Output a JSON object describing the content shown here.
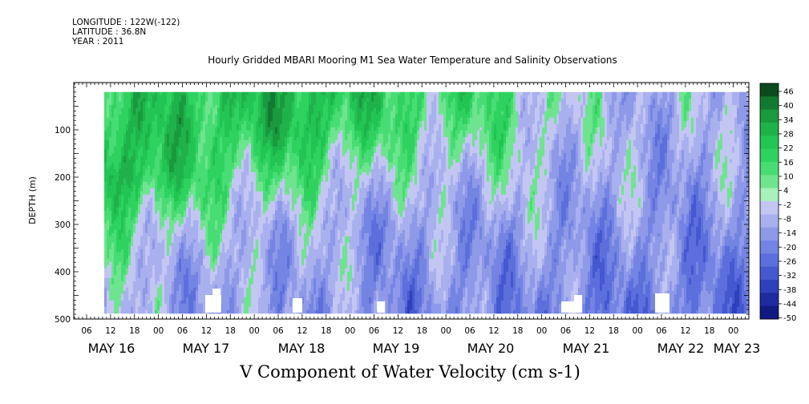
{
  "header": {
    "longitude": "LONGITUDE : 122W(-122)",
    "latitude": "LATITUDE : 36.8N",
    "year": "YEAR : 2011"
  },
  "chart_data": {
    "type": "heatmap",
    "title": "Hourly Gridded MBARI Mooring M1 Sea Water Temperature and Salinity Observations",
    "xlabel": "V Component of Water Velocity (cm s-1)",
    "ylabel": "DEPTH (m)",
    "x_start": "MAY 15 18:00",
    "x_end": "MAY 23 06:00",
    "x_tick_hours": [
      "06",
      "12",
      "18",
      "00"
    ],
    "x_day_labels": [
      "MAY 16",
      "MAY 17",
      "MAY 18",
      "MAY 19",
      "MAY 20",
      "MAY 21",
      "MAY 22",
      "MAY 23"
    ],
    "ylim": [
      500,
      0
    ],
    "y_ticks": [
      100,
      200,
      300,
      400,
      500
    ],
    "data_depth_range": [
      20,
      485
    ],
    "colorbar": {
      "levels": [
        46,
        40,
        34,
        28,
        22,
        16,
        10,
        4,
        -2,
        -8,
        -14,
        -20,
        -26,
        -32,
        -38,
        -44,
        -50
      ],
      "colors_pos_high": [
        "#0b4a1c",
        "#127a30",
        "#1a9a3e",
        "#20b24a",
        "#22c553",
        "#2fd25f",
        "#48dd74",
        "#6ee48f",
        "#a8f0bc"
      ],
      "colors_neg_low": [
        "#c3c6f2",
        "#a9b0ee",
        "#8e99e8",
        "#7484e2",
        "#5c6fdc",
        "#4458cf",
        "#2f40bd",
        "#1f2ba0",
        "#101a80"
      ]
    },
    "velocity_grid_cm_s": {
      "depths_m": [
        25,
        100,
        200,
        300,
        400,
        475
      ],
      "days": [
        "MAY 16",
        "MAY 17",
        "MAY 18",
        "MAY 19",
        "MAY 20",
        "MAY 21",
        "MAY 22"
      ],
      "values": [
        [
          18,
          20,
          26,
          14,
          10,
          -4,
          -6
        ],
        [
          24,
          18,
          22,
          8,
          6,
          -6,
          -8
        ],
        [
          28,
          10,
          6,
          -4,
          -2,
          -8,
          -10
        ],
        [
          8,
          -2,
          -6,
          -12,
          -10,
          -12,
          -14
        ],
        [
          -4,
          -10,
          -8,
          -14,
          -14,
          -16,
          -18
        ],
        [
          -6,
          -12,
          -10,
          -16,
          -16,
          -18,
          -20
        ]
      ]
    }
  }
}
